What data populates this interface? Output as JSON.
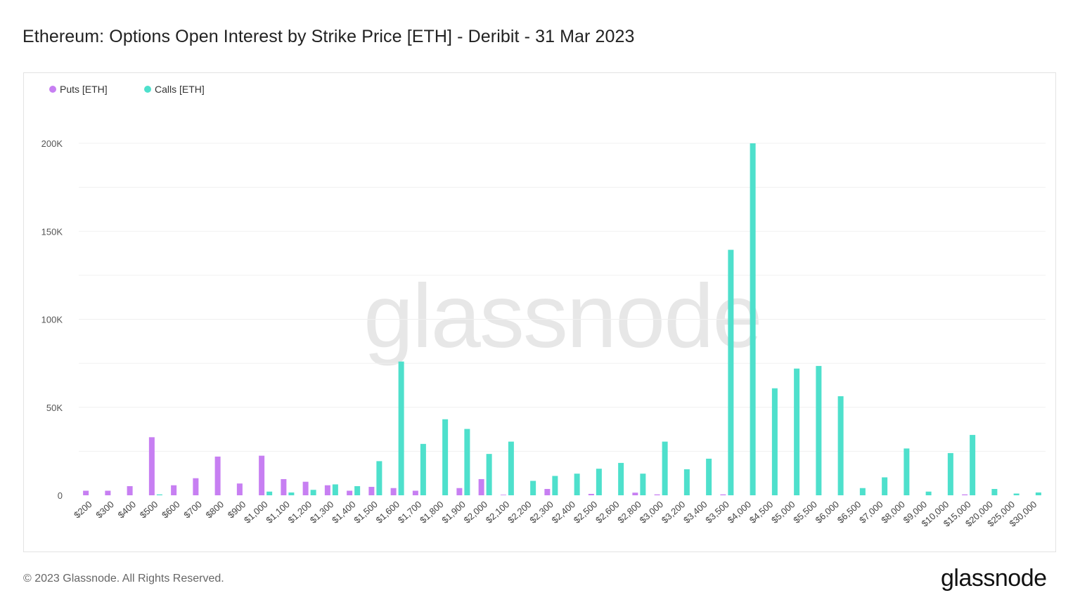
{
  "title": "Ethereum: Options Open Interest by Strike Price [ETH] - Deribit - 31 Mar 2023",
  "watermark": "glassnode",
  "footer": {
    "copyright": "© 2023 Glassnode. All Rights Reserved.",
    "logo": "glassnode"
  },
  "colors": {
    "puts": "#c77ff2",
    "calls": "#4ee0cc",
    "grid": "#f0f0f0"
  },
  "chart_data": {
    "type": "bar",
    "title": "Ethereum: Options Open Interest by Strike Price [ETH] - Deribit - 31 Mar 2023",
    "xlabel": "",
    "ylabel": "",
    "ylim": [
      0,
      200000
    ],
    "yticks": [
      0,
      50000,
      100000,
      150000,
      200000
    ],
    "ytick_labels": [
      "0",
      "50K",
      "100K",
      "150K",
      "200K"
    ],
    "grid": true,
    "legend_position": "top-left",
    "categories": [
      "$200",
      "$300",
      "$400",
      "$500",
      "$600",
      "$700",
      "$800",
      "$900",
      "$1,000",
      "$1,100",
      "$1,200",
      "$1,300",
      "$1,400",
      "$1,500",
      "$1,600",
      "$1,700",
      "$1,800",
      "$1,900",
      "$2,000",
      "$2,100",
      "$2,200",
      "$2,300",
      "$2,400",
      "$2,500",
      "$2,600",
      "$2,800",
      "$3,000",
      "$3,200",
      "$3,400",
      "$3,500",
      "$4,000",
      "$4,500",
      "$5,000",
      "$5,500",
      "$6,000",
      "$6,500",
      "$7,000",
      "$8,000",
      "$9,000",
      "$10,000",
      "$15,000",
      "$20,000",
      "$25,000",
      "$30,000"
    ],
    "series": [
      {
        "name": "Puts [ETH]",
        "color": "#c77ff2",
        "values": [
          2600,
          2600,
          5200,
          33000,
          5700,
          9700,
          22000,
          6700,
          22500,
          9200,
          7700,
          5700,
          2600,
          4800,
          4100,
          2600,
          0,
          4100,
          9200,
          300,
          0,
          3600,
          0,
          800,
          0,
          1500,
          500,
          0,
          0,
          500,
          0,
          0,
          0,
          0,
          0,
          0,
          0,
          0,
          0,
          0,
          500,
          0,
          0,
          0
        ]
      },
      {
        "name": "Calls [ETH]",
        "color": "#4ee0cc",
        "values": [
          0,
          0,
          0,
          500,
          0,
          0,
          0,
          0,
          2100,
          1600,
          3100,
          6200,
          5200,
          19400,
          76000,
          29200,
          43200,
          37700,
          23500,
          30500,
          8200,
          11000,
          12300,
          15100,
          18400,
          12300,
          30500,
          14800,
          20800,
          139500,
          200000,
          60800,
          72000,
          73500,
          56300,
          4100,
          10200,
          26600,
          2100,
          24000,
          34300,
          3600,
          1000,
          1600
        ]
      }
    ]
  }
}
